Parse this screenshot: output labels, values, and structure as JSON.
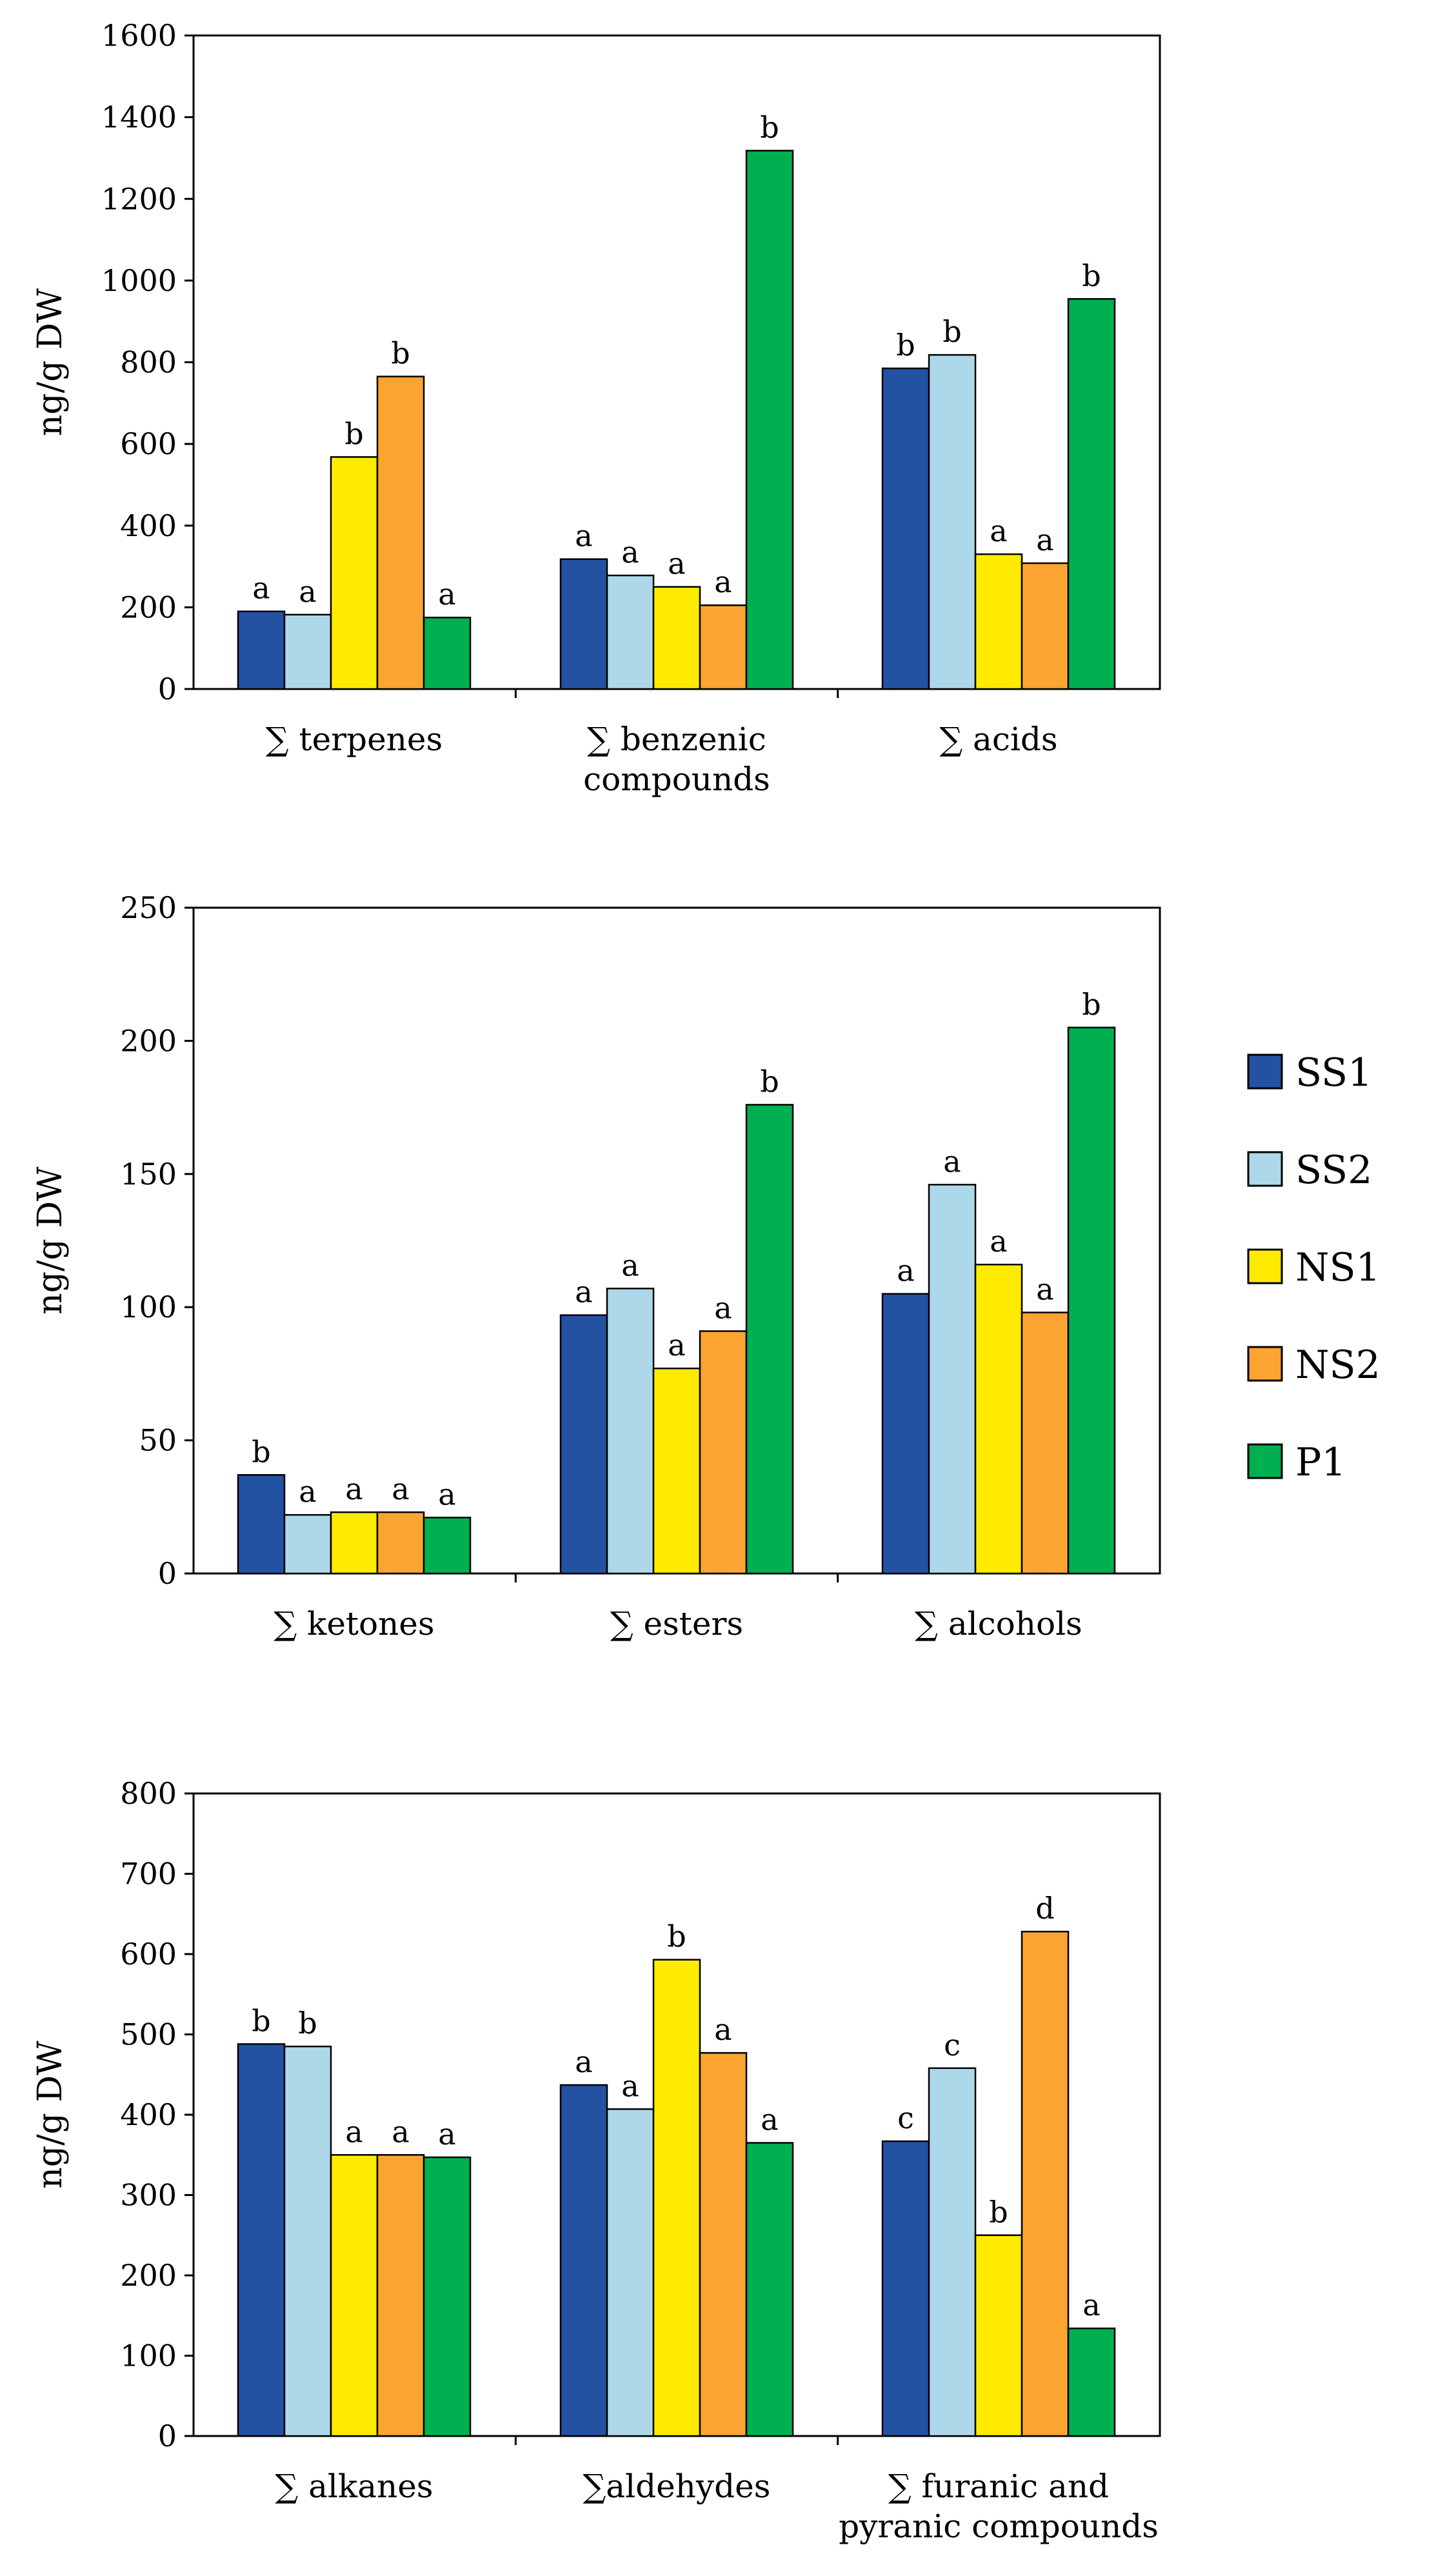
{
  "legend": [
    {
      "name": "SS1",
      "color": "#2352A3"
    },
    {
      "name": "SS2",
      "color": "#ADD8EA"
    },
    {
      "name": "NS1",
      "color": "#FFEB00"
    },
    {
      "name": "NS2",
      "color": "#FBA432"
    },
    {
      "name": "P1",
      "color": "#00B050"
    }
  ],
  "chart_data": [
    {
      "type": "bar",
      "ylabel": "ng/g DW",
      "xlabel": "",
      "ylim": [
        0,
        1600
      ],
      "yticks": [
        0,
        200,
        400,
        600,
        800,
        1000,
        1200,
        1400,
        1600
      ],
      "grid": false,
      "categories": [
        [
          "∑ terpenes"
        ],
        [
          "∑ benzenic",
          "compounds"
        ],
        [
          "∑ acids"
        ]
      ],
      "series": [
        {
          "name": "SS1",
          "values": [
            190,
            318,
            785
          ],
          "letters": [
            "a",
            "a",
            "b"
          ]
        },
        {
          "name": "SS2",
          "values": [
            182,
            278,
            818
          ],
          "letters": [
            "a",
            "a",
            "b"
          ]
        },
        {
          "name": "NS1",
          "values": [
            568,
            250,
            330
          ],
          "letters": [
            "b",
            "a",
            "a"
          ]
        },
        {
          "name": "NS2",
          "values": [
            765,
            205,
            308
          ],
          "letters": [
            "b",
            "a",
            "a"
          ]
        },
        {
          "name": "P1",
          "values": [
            175,
            1318,
            955
          ],
          "letters": [
            "a",
            "b",
            "b"
          ]
        }
      ]
    },
    {
      "type": "bar",
      "ylabel": "ng/g DW",
      "xlabel": "",
      "ylim": [
        0,
        250
      ],
      "yticks": [
        0,
        50,
        100,
        150,
        200,
        250
      ],
      "grid": false,
      "categories": [
        [
          "∑ ketones"
        ],
        [
          "∑ esters"
        ],
        [
          "∑ alcohols"
        ]
      ],
      "series": [
        {
          "name": "SS1",
          "values": [
            37,
            97,
            105
          ],
          "letters": [
            "b",
            "a",
            "a"
          ]
        },
        {
          "name": "SS2",
          "values": [
            22,
            107,
            146
          ],
          "letters": [
            "a",
            "a",
            "a"
          ]
        },
        {
          "name": "NS1",
          "values": [
            23,
            77,
            116
          ],
          "letters": [
            "a",
            "a",
            "a"
          ]
        },
        {
          "name": "NS2",
          "values": [
            23,
            91,
            98
          ],
          "letters": [
            "a",
            "a",
            "a"
          ]
        },
        {
          "name": "P1",
          "values": [
            21,
            176,
            205
          ],
          "letters": [
            "a",
            "b",
            "b"
          ]
        }
      ]
    },
    {
      "type": "bar",
      "ylabel": "ng/g DW",
      "xlabel": "",
      "ylim": [
        0,
        800
      ],
      "yticks": [
        0,
        100,
        200,
        300,
        400,
        500,
        600,
        700,
        800
      ],
      "grid": false,
      "categories": [
        [
          "∑ alkanes"
        ],
        [
          "∑aldehydes"
        ],
        [
          "∑ furanic and",
          "pyranic compounds"
        ]
      ],
      "series": [
        {
          "name": "SS1",
          "values": [
            488,
            437,
            367
          ],
          "letters": [
            "b",
            "a",
            "c"
          ]
        },
        {
          "name": "SS2",
          "values": [
            485,
            407,
            458
          ],
          "letters": [
            "b",
            "a",
            "c"
          ]
        },
        {
          "name": "NS1",
          "values": [
            350,
            593,
            250
          ],
          "letters": [
            "a",
            "b",
            "b"
          ]
        },
        {
          "name": "NS2",
          "values": [
            350,
            477,
            628
          ],
          "letters": [
            "a",
            "a",
            "d"
          ]
        },
        {
          "name": "P1",
          "values": [
            347,
            365,
            134
          ],
          "letters": [
            "a",
            "a",
            "a"
          ]
        }
      ]
    }
  ]
}
